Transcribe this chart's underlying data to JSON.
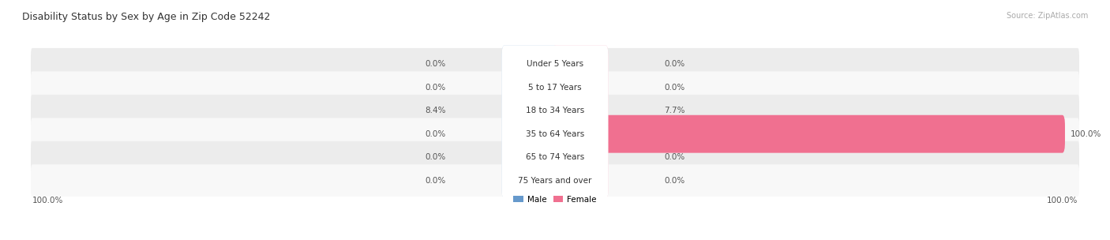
{
  "title": "Disability Status by Sex by Age in Zip Code 52242",
  "source": "Source: ZipAtlas.com",
  "categories": [
    "Under 5 Years",
    "5 to 17 Years",
    "18 to 34 Years",
    "35 to 64 Years",
    "65 to 74 Years",
    "75 Years and over"
  ],
  "male_values": [
    0.0,
    0.0,
    8.4,
    0.0,
    0.0,
    0.0
  ],
  "female_values": [
    0.0,
    0.0,
    7.7,
    100.0,
    0.0,
    0.0
  ],
  "male_color_light": "#b8d0e8",
  "male_color_dark": "#6699cc",
  "female_color_light": "#f5c0d0",
  "female_color_dark": "#f07090",
  "row_bg_color": "#ececec",
  "row_bg_color2": "#f8f8f8",
  "max_value": 100.0,
  "left_label": "100.0%",
  "right_label": "100.0%",
  "legend_male": "Male",
  "legend_female": "Female",
  "figwidth": 14.06,
  "figheight": 3.04,
  "title_fontsize": 9,
  "source_fontsize": 7,
  "label_fontsize": 7.5,
  "cat_fontsize": 7.5,
  "axis_label_fontsize": 7.5
}
